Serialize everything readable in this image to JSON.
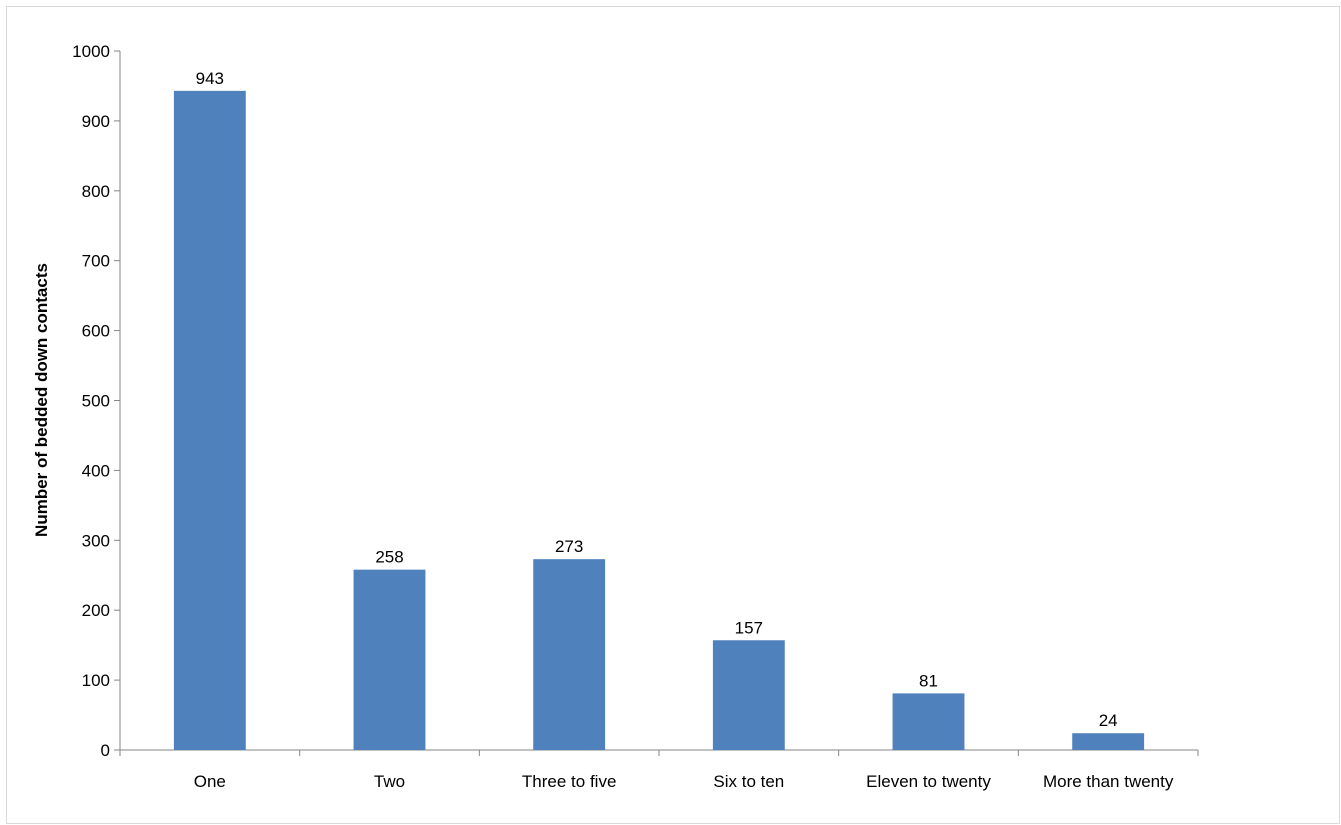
{
  "chart_data": {
    "type": "bar",
    "title": "",
    "xlabel": "",
    "ylabel": "Number of bedded down contacts",
    "categories": [
      "One",
      "Two",
      "Three to five",
      "Six to ten",
      "Eleven to twenty",
      "More than twenty"
    ],
    "values": [
      943,
      258,
      273,
      157,
      81,
      24
    ],
    "ylim": [
      0,
      1000
    ],
    "yticks": [
      0,
      100,
      200,
      300,
      400,
      500,
      600,
      700,
      800,
      900,
      1000
    ],
    "grid": false,
    "legend": "none",
    "bar_color": "#4F81BD"
  }
}
